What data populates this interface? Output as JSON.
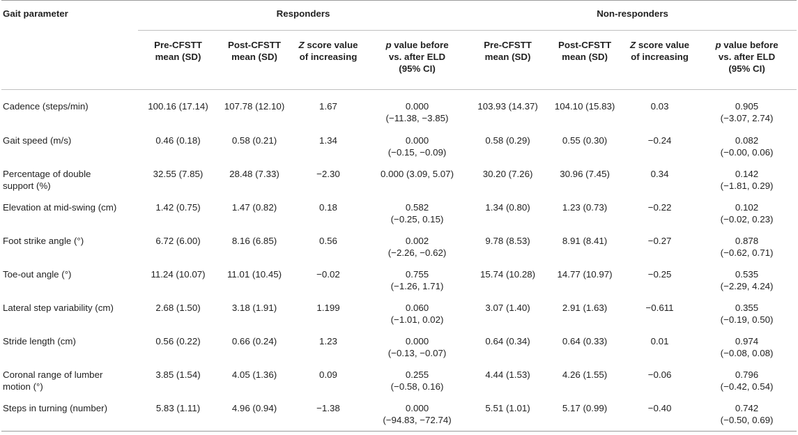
{
  "headers": {
    "gait_parameter": "Gait parameter",
    "responders": "Responders",
    "non_responders": "Non-responders",
    "pre_mean_l1": "Pre-CFSTT",
    "pre_mean_l2": "mean (SD)",
    "post_mean_l1": "Post-CFSTT",
    "post_mean_l2": "mean (SD)",
    "z_l1_sym": "Z",
    "z_l1_rest": " score value",
    "z_l2": "of increasing",
    "p_l1_sym": "p",
    "p_l1_rest": " value before",
    "p_l2": "vs. after ELD",
    "p_l3": "(95% CI)"
  },
  "rows": [
    {
      "param": "Cadence (steps/min)",
      "r_pre": "100.16 (17.14)",
      "r_post": "107.78 (12.10)",
      "r_z": "1.67",
      "r_p1": "0.000",
      "r_p2": "(−11.38, −3.85)",
      "n_pre": "103.93 (14.37)",
      "n_post": "104.10 (15.83)",
      "n_z": "0.03",
      "n_p1": "0.905",
      "n_p2": "(−3.07, 2.74)"
    },
    {
      "param": "Gait speed (m/s)",
      "r_pre": "0.46 (0.18)",
      "r_post": "0.58 (0.21)",
      "r_z": "1.34",
      "r_p1": "0.000",
      "r_p2": "(−0.15, −0.09)",
      "n_pre": "0.58 (0.29)",
      "n_post": "0.55 (0.30)",
      "n_z": "−0.24",
      "n_p1": "0.082",
      "n_p2": "(−0.00, 0.06)"
    },
    {
      "param": "Percentage of double",
      "param2": "support (%)",
      "r_pre": "32.55 (7.85)",
      "r_post": "28.48 (7.33)",
      "r_z": "−2.30",
      "r_p1": "0.000 (3.09, 5.07)",
      "r_p2": "",
      "n_pre": "30.20 (7.26)",
      "n_post": "30.96 (7.45)",
      "n_z": "0.34",
      "n_p1": "0.142",
      "n_p2": "(−1.81, 0.29)"
    },
    {
      "param": "Elevation at mid-swing (cm)",
      "r_pre": "1.42 (0.75)",
      "r_post": "1.47 (0.82)",
      "r_z": "0.18",
      "r_p1": "0.582",
      "r_p2": "(−0.25, 0.15)",
      "n_pre": "1.34 (0.80)",
      "n_post": "1.23 (0.73)",
      "n_z": "−0.22",
      "n_p1": "0.102",
      "n_p2": "(−0.02, 0.23)"
    },
    {
      "param": "Foot strike angle (°)",
      "r_pre": "6.72 (6.00)",
      "r_post": "8.16 (6.85)",
      "r_z": "0.56",
      "r_p1": "0.002",
      "r_p2": "(−2.26, −0.62)",
      "n_pre": "9.78 (8.53)",
      "n_post": "8.91 (8.41)",
      "n_z": "−0.27",
      "n_p1": "0.878",
      "n_p2": "(−0.62, 0.71)"
    },
    {
      "param": "Toe-out angle (°)",
      "r_pre": "11.24 (10.07)",
      "r_post": "11.01 (10.45)",
      "r_z": "−0.02",
      "r_p1": "0.755",
      "r_p2": "(−1.26, 1.71)",
      "n_pre": "15.74 (10.28)",
      "n_post": "14.77 (10.97)",
      "n_z": "−0.25",
      "n_p1": "0.535",
      "n_p2": "(−2.29, 4.24)"
    },
    {
      "param": "Lateral step variability (cm)",
      "r_pre": "2.68 (1.50)",
      "r_post": "3.18 (1.91)",
      "r_z": "1.199",
      "r_p1": "0.060",
      "r_p2": "(−1.01, 0.02)",
      "n_pre": "3.07 (1.40)",
      "n_post": "2.91 (1.63)",
      "n_z": "−0.611",
      "n_p1": "0.355",
      "n_p2": "(−0.19, 0.50)"
    },
    {
      "param": "Stride length (cm)",
      "r_pre": "0.56 (0.22)",
      "r_post": "0.66 (0.24)",
      "r_z": "1.23",
      "r_p1": "0.000",
      "r_p2": "(−0.13, −0.07)",
      "n_pre": "0.64 (0.34)",
      "n_post": "0.64 (0.33)",
      "n_z": "0.01",
      "n_p1": "0.974",
      "n_p2": "(−0.08, 0.08)"
    },
    {
      "param": "Coronal range of lumber",
      "param2": "motion (°)",
      "r_pre": "3.85 (1.54)",
      "r_post": "4.05 (1.36)",
      "r_z": "0.09",
      "r_p1": "0.255",
      "r_p2": "(−0.58, 0.16)",
      "n_pre": "4.44 (1.53)",
      "n_post": "4.26 (1.55)",
      "n_z": "−0.06",
      "n_p1": "0.796",
      "n_p2": "(−0.42, 0.54)"
    },
    {
      "param": "Steps in turning (number)",
      "r_pre": "5.83 (1.11)",
      "r_post": "4.96 (0.94)",
      "r_z": "−1.38",
      "r_p1": "0.000",
      "r_p2": "(−94.83, −72.74)",
      "n_pre": "5.51 (1.01)",
      "n_post": "5.17 (0.99)",
      "n_z": "−0.40",
      "n_p1": "0.742",
      "n_p2": "(−0.50, 0.69)"
    }
  ]
}
